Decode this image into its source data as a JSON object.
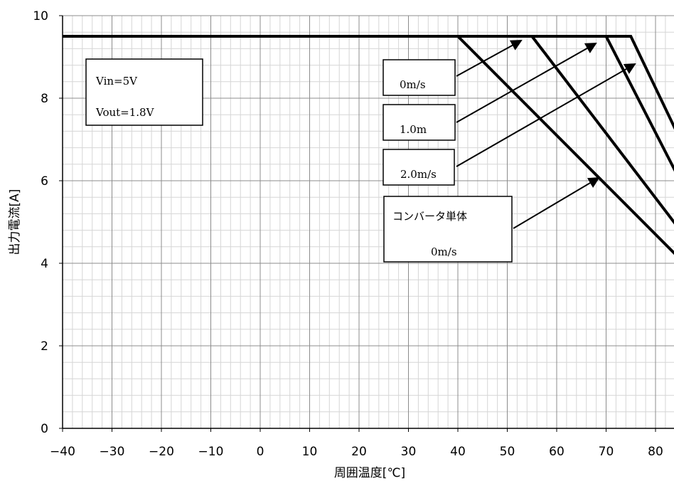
{
  "chart_data": {
    "type": "line",
    "xlabel": "周囲温度[℃]",
    "ylabel": "出力電流[A]",
    "xlim": [
      -40,
      85
    ],
    "ylim": [
      0,
      10
    ],
    "xticks": [
      -40,
      -30,
      -20,
      -10,
      0,
      10,
      20,
      30,
      40,
      50,
      60,
      70,
      80
    ],
    "yticks": [
      0,
      2,
      4,
      6,
      8,
      10
    ],
    "grid": true,
    "series": [
      {
        "label": "コンバータ単体 0m/s",
        "x": [
          -40,
          40,
          85
        ],
        "y": [
          9.5,
          9.5,
          4.1
        ]
      },
      {
        "label": "0m/s",
        "x": [
          -40,
          55,
          85
        ],
        "y": [
          9.5,
          9.5,
          4.8
        ]
      },
      {
        "label": "1.0m",
        "x": [
          -40,
          70,
          85
        ],
        "y": [
          9.5,
          9.5,
          6.0
        ]
      },
      {
        "label": "2.0m/s",
        "x": [
          -40,
          75,
          85
        ],
        "y": [
          9.5,
          9.5,
          7.0
        ]
      }
    ],
    "annotations": {
      "conditions": {
        "line1": "Vin=5V",
        "line2": "Vout=1.8V"
      },
      "callouts": [
        {
          "text": "0m/s",
          "target": [
            55,
            9.5
          ]
        },
        {
          "text": "1.0m",
          "target": [
            68,
            9.4
          ]
        },
        {
          "text": "2.0m/s",
          "target": [
            72,
            8.8
          ]
        },
        {
          "line1": "コンバータ単体",
          "line2": "0m/s",
          "target": [
            67,
            6.1
          ]
        }
      ]
    }
  }
}
